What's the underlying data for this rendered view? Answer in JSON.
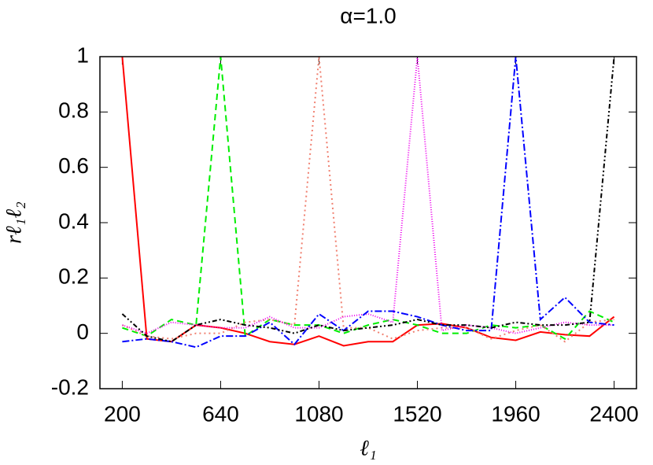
{
  "chart_data": {
    "type": "line",
    "title": "α=1.0",
    "xlabel": "ℓ₁",
    "ylabel": "rℓ₁ℓ₂",
    "x": [
      200,
      310,
      420,
      530,
      640,
      750,
      860,
      970,
      1080,
      1190,
      1300,
      1410,
      1520,
      1630,
      1740,
      1850,
      1960,
      2070,
      2180,
      2290,
      2400
    ],
    "xlim": [
      100,
      2500
    ],
    "xticks": [
      200,
      640,
      1080,
      1520,
      1960,
      2400
    ],
    "ylim": [
      -0.2,
      1
    ],
    "yticks": [
      -0.2,
      0,
      0.2,
      0.4,
      0.6,
      0.8,
      1
    ],
    "series": [
      {
        "color": "#ff0000",
        "dash": "none",
        "values": [
          1.0,
          -0.02,
          -0.03,
          0.03,
          0.02,
          0.0,
          -0.03,
          -0.04,
          -0.01,
          -0.045,
          -0.03,
          -0.03,
          0.03,
          0.035,
          0.02,
          -0.015,
          -0.025,
          0.005,
          -0.005,
          -0.01,
          0.06
        ]
      },
      {
        "color": "#00ee00",
        "dash": "8,5",
        "values": [
          0.02,
          -0.01,
          0.05,
          0.03,
          1.0,
          -0.01,
          0.05,
          0.03,
          0.03,
          0.0,
          0.03,
          0.05,
          0.03,
          0.0,
          0.0,
          0.03,
          0.02,
          0.03,
          -0.02,
          0.08,
          0.04
        ]
      },
      {
        "color": "#f08070",
        "dash": "2,4",
        "values": [
          0.03,
          -0.01,
          -0.02,
          0.0,
          0.0,
          0.04,
          0.05,
          0.03,
          1.0,
          0.02,
          0.02,
          -0.02,
          0.01,
          0.02,
          0.02,
          -0.02,
          0.01,
          0.03,
          -0.03,
          0.04,
          0.05
        ]
      },
      {
        "color": "#ee00ee",
        "dash": "1,2",
        "values": [
          0.03,
          0.0,
          0.04,
          0.03,
          0.02,
          0.02,
          0.06,
          0.02,
          0.02,
          0.06,
          0.07,
          0.04,
          1.0,
          0.01,
          0.03,
          0.02,
          0.0,
          0.02,
          0.04,
          0.03,
          0.03
        ]
      },
      {
        "color": "#0000ff",
        "dash": "9,3,2,3",
        "values": [
          -0.03,
          -0.02,
          -0.03,
          -0.05,
          -0.01,
          -0.01,
          0.04,
          -0.04,
          0.07,
          0.01,
          0.08,
          0.08,
          0.06,
          0.03,
          0.01,
          0.01,
          1.0,
          0.05,
          0.13,
          0.04,
          0.03
        ]
      },
      {
        "color": "#000000",
        "dash": "6,3,2,3,2,3",
        "values": [
          0.07,
          -0.01,
          -0.03,
          0.03,
          0.05,
          0.03,
          0.02,
          0.0,
          0.03,
          0.01,
          0.02,
          0.03,
          0.05,
          0.03,
          0.03,
          0.02,
          0.04,
          0.03,
          0.03,
          0.04,
          1.0
        ]
      }
    ]
  }
}
